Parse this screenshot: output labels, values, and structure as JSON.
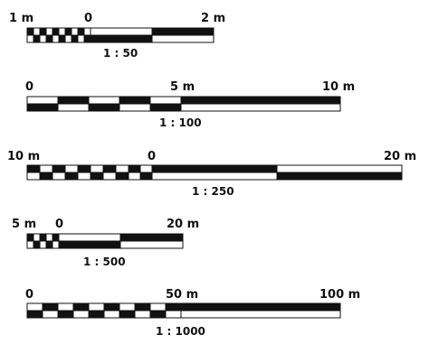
{
  "scale_bars": [
    {
      "ratio_label": "1 : 50",
      "labels": [
        "1 m",
        "0",
        "2 m"
      ],
      "unit": "m",
      "subdivided_left_length": 1,
      "subdivided_left_divisions": 10,
      "right_length": 2,
      "right_divisions": 2
    },
    {
      "ratio_label": "1 : 100",
      "labels": [
        "0",
        "5 m",
        "10 m"
      ],
      "unit": "m",
      "subdivided_left_length": 5,
      "subdivided_left_divisions": 5,
      "right_length": 5,
      "right_divisions": 1
    },
    {
      "ratio_label": "1 : 250",
      "labels": [
        "10 m",
        "0",
        "20 m"
      ],
      "unit": "m",
      "subdivided_left_length": 10,
      "subdivided_left_divisions": 10,
      "right_length": 20,
      "right_divisions": 2
    },
    {
      "ratio_label": "1 : 500",
      "labels": [
        "5 m",
        "0",
        "20 m"
      ],
      "unit": "m",
      "subdivided_left_length": 5,
      "subdivided_left_divisions": 5,
      "right_length": 20,
      "right_divisions": 2
    },
    {
      "ratio_label": "1 : 1000",
      "labels": [
        "0",
        "50 m",
        "100 m"
      ],
      "unit": "m",
      "subdivided_left_length": 50,
      "subdivided_left_divisions": 10,
      "right_length": 50,
      "right_divisions": 1
    }
  ]
}
